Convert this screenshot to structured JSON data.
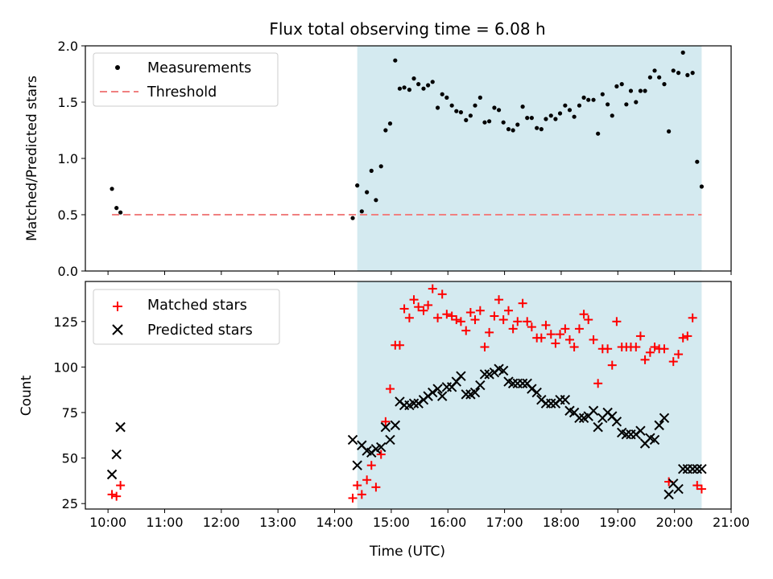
{
  "chart_data": {
    "title": "Flux total observing time = 6.08 h",
    "xlabel": "Time (UTC)",
    "xlim": [
      9.6,
      21.0
    ],
    "x_ticks": [
      10,
      11,
      12,
      13,
      14,
      15,
      16,
      17,
      18,
      19,
      20,
      21
    ],
    "x_tick_labels": [
      "10:00",
      "11:00",
      "12:00",
      "13:00",
      "14:00",
      "15:00",
      "16:00",
      "17:00",
      "18:00",
      "19:00",
      "20:00",
      "21:00"
    ],
    "shaded_interval": {
      "start": 14.4,
      "end": 20.48,
      "color": "#d4eaf0"
    },
    "panels": [
      {
        "type": "scatter",
        "ylabel": "Matched/Predicted stars",
        "ylim": [
          0,
          2.0
        ],
        "y_ticks": [
          0.0,
          0.5,
          1.0,
          1.5,
          2.0
        ],
        "y_tick_labels": [
          "0.0",
          "0.5",
          "1.0",
          "1.5",
          "2.0"
        ],
        "legend": {
          "placement": "top-left",
          "entries": [
            "Measurements",
            "Threshold"
          ]
        },
        "series": [
          {
            "name": "Measurements",
            "marker": "dot",
            "color": "#000000",
            "x": [
              10.07,
              10.15,
              10.22,
              14.32,
              14.4,
              14.48,
              14.57,
              14.65,
              14.73,
              14.82,
              14.9,
              14.98,
              15.07,
              15.15,
              15.23,
              15.32,
              15.4,
              15.48,
              15.57,
              15.65,
              15.73,
              15.82,
              15.9,
              15.98,
              16.07,
              16.15,
              16.23,
              16.32,
              16.4,
              16.48,
              16.57,
              16.65,
              16.73,
              16.82,
              16.9,
              16.98,
              17.07,
              17.15,
              17.23,
              17.32,
              17.4,
              17.48,
              17.57,
              17.65,
              17.73,
              17.82,
              17.9,
              17.98,
              18.07,
              18.15,
              18.23,
              18.32,
              18.4,
              18.48,
              18.57,
              18.65,
              18.73,
              18.82,
              18.9,
              18.98,
              19.07,
              19.15,
              19.23,
              19.32,
              19.4,
              19.48,
              19.57,
              19.65,
              19.73,
              19.82,
              19.9,
              19.98,
              20.07,
              20.15,
              20.23,
              20.32,
              20.4,
              20.48
            ],
            "y": [
              0.73,
              0.56,
              0.52,
              0.47,
              0.76,
              0.53,
              0.7,
              0.89,
              0.63,
              0.93,
              1.25,
              1.31,
              1.87,
              1.62,
              1.63,
              1.61,
              1.71,
              1.66,
              1.62,
              1.65,
              1.68,
              1.45,
              1.57,
              1.54,
              1.47,
              1.42,
              1.41,
              1.34,
              1.38,
              1.47,
              1.54,
              1.32,
              1.33,
              1.45,
              1.43,
              1.32,
              1.26,
              1.25,
              1.3,
              1.46,
              1.36,
              1.36,
              1.27,
              1.26,
              1.35,
              1.38,
              1.35,
              1.4,
              1.47,
              1.43,
              1.37,
              1.47,
              1.54,
              1.52,
              1.52,
              1.22,
              1.57,
              1.48,
              1.38,
              1.64,
              1.66,
              1.48,
              1.6,
              1.5,
              1.6,
              1.6,
              1.72,
              1.78,
              1.72,
              1.66,
              1.24,
              1.78,
              1.76,
              1.94,
              1.74,
              1.76,
              0.97,
              0.75
            ]
          },
          {
            "name": "Threshold",
            "marker": "dashed-line",
            "color": "#f08080",
            "x": [
              10.07,
              20.48
            ],
            "y": [
              0.5,
              0.5
            ]
          }
        ]
      },
      {
        "type": "scatter",
        "ylabel": "Count",
        "ylim": [
          22,
          147
        ],
        "y_ticks": [
          25,
          50,
          75,
          100,
          125
        ],
        "y_tick_labels": [
          "25",
          "50",
          "75",
          "100",
          "125"
        ],
        "legend": {
          "placement": "top-left",
          "entries": [
            "Matched stars",
            "Predicted stars"
          ]
        },
        "series": [
          {
            "name": "Matched stars",
            "marker": "plus",
            "color": "#ff0000",
            "x": [
              10.07,
              10.15,
              10.22,
              14.32,
              14.4,
              14.48,
              14.57,
              14.65,
              14.73,
              14.82,
              14.9,
              14.98,
              15.07,
              15.15,
              15.23,
              15.32,
              15.4,
              15.48,
              15.57,
              15.65,
              15.73,
              15.82,
              15.9,
              15.98,
              16.07,
              16.15,
              16.23,
              16.32,
              16.4,
              16.48,
              16.57,
              16.65,
              16.73,
              16.82,
              16.9,
              16.98,
              17.07,
              17.15,
              17.23,
              17.32,
              17.4,
              17.48,
              17.57,
              17.65,
              17.73,
              17.82,
              17.9,
              17.98,
              18.07,
              18.15,
              18.23,
              18.32,
              18.4,
              18.48,
              18.57,
              18.65,
              18.73,
              18.82,
              18.9,
              18.98,
              19.07,
              19.15,
              19.23,
              19.32,
              19.4,
              19.48,
              19.57,
              19.65,
              19.73,
              19.82,
              19.9,
              19.98,
              20.07,
              20.15,
              20.23,
              20.32,
              20.4,
              20.48
            ],
            "y": [
              30,
              29,
              35,
              28,
              35,
              30,
              38,
              46,
              34,
              52,
              70,
              88,
              112,
              112,
              132,
              127,
              137,
              133,
              131,
              134,
              143,
              127,
              140,
              129,
              128,
              126,
              125,
              120,
              130,
              126,
              131,
              111,
              119,
              128,
              137,
              126,
              131,
              121,
              125,
              135,
              125,
              122,
              116,
              116,
              123,
              118,
              113,
              118,
              121,
              115,
              111,
              121,
              129,
              126,
              115,
              91,
              110,
              110,
              101,
              125,
              111,
              111,
              111,
              111,
              117,
              104,
              108,
              111,
              110,
              110,
              37,
              103,
              107,
              116,
              117,
              127,
              35,
              33
            ]
          },
          {
            "name": "Predicted stars",
            "marker": "x",
            "color": "#000000",
            "x": [
              10.07,
              10.15,
              10.22,
              14.32,
              14.4,
              14.48,
              14.57,
              14.65,
              14.73,
              14.82,
              14.9,
              14.98,
              15.07,
              15.15,
              15.23,
              15.32,
              15.4,
              15.48,
              15.57,
              15.65,
              15.73,
              15.82,
              15.9,
              15.98,
              16.07,
              16.15,
              16.23,
              16.32,
              16.4,
              16.48,
              16.57,
              16.65,
              16.73,
              16.82,
              16.9,
              16.98,
              17.07,
              17.15,
              17.23,
              17.32,
              17.4,
              17.48,
              17.57,
              17.65,
              17.73,
              17.82,
              17.9,
              17.98,
              18.07,
              18.15,
              18.23,
              18.32,
              18.4,
              18.48,
              18.57,
              18.65,
              18.73,
              18.82,
              18.9,
              18.98,
              19.07,
              19.15,
              19.23,
              19.32,
              19.4,
              19.48,
              19.57,
              19.65,
              19.73,
              19.82,
              19.9,
              19.98,
              20.07,
              20.15,
              20.23,
              20.32,
              20.4,
              20.48
            ],
            "y": [
              41,
              52,
              67,
              60,
              46,
              57,
              54,
              53,
              55,
              56,
              67,
              60,
              68,
              81,
              79,
              79,
              80,
              80,
              82,
              84,
              86,
              88,
              84,
              89,
              89,
              92,
              95,
              85,
              85,
              86,
              90,
              96,
              96,
              97,
              99,
              98,
              92,
              91,
              91,
              91,
              91,
              88,
              86,
              82,
              80,
              80,
              80,
              82,
              82,
              76,
              75,
              72,
              72,
              73,
              76,
              67,
              72,
              75,
              73,
              70,
              64,
              63,
              63,
              63,
              65,
              58,
              61,
              60,
              68,
              72,
              30,
              36,
              33,
              44,
              44,
              44,
              44,
              44
            ]
          }
        ]
      }
    ]
  }
}
